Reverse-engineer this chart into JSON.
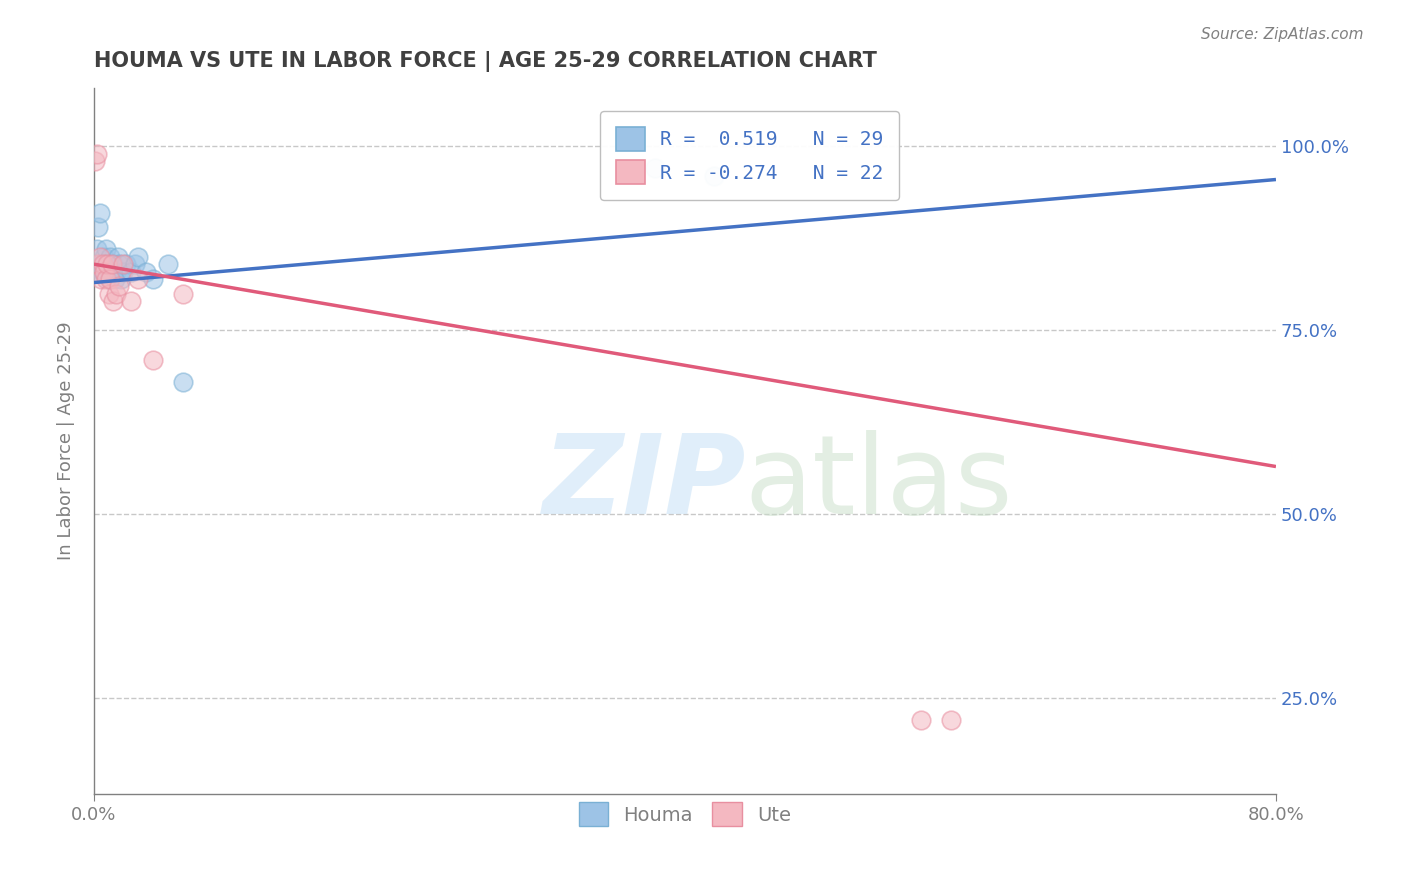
{
  "title": "HOUMA VS UTE IN LABOR FORCE | AGE 25-29 CORRELATION CHART",
  "xlabel": "",
  "ylabel": "In Labor Force | Age 25-29",
  "source_text": "Source: ZipAtlas.com",
  "xlim": [
    0.0,
    0.8
  ],
  "ylim": [
    0.12,
    1.08
  ],
  "ytick_values": [
    0.25,
    0.5,
    0.75,
    1.0
  ],
  "houma_color": "#9dc3e6",
  "ute_color": "#f4b8c1",
  "houma_edge": "#7ab0d4",
  "ute_edge": "#e88fa0",
  "trend_houma_color": "#4472c4",
  "trend_ute_color": "#e05a7a",
  "legend_R_houma": "R =  0.519",
  "legend_N_houma": "N = 29",
  "legend_R_ute": "R = -0.274",
  "legend_N_ute": "N = 22",
  "houma_x": [
    0.001,
    0.002,
    0.003,
    0.004,
    0.005,
    0.006,
    0.007,
    0.008,
    0.009,
    0.01,
    0.011,
    0.012,
    0.013,
    0.014,
    0.015,
    0.016,
    0.017,
    0.018,
    0.02,
    0.022,
    0.025,
    0.028,
    0.03,
    0.035,
    0.04,
    0.05,
    0.06,
    0.38,
    0.42
  ],
  "houma_y": [
    0.83,
    0.86,
    0.89,
    0.91,
    0.84,
    0.83,
    0.85,
    0.86,
    0.84,
    0.82,
    0.85,
    0.83,
    0.84,
    0.82,
    0.83,
    0.85,
    0.84,
    0.82,
    0.83,
    0.84,
    0.83,
    0.84,
    0.85,
    0.83,
    0.82,
    0.84,
    0.68,
    0.97,
    0.96
  ],
  "ute_x": [
    0.001,
    0.002,
    0.003,
    0.004,
    0.005,
    0.006,
    0.007,
    0.008,
    0.009,
    0.01,
    0.011,
    0.012,
    0.013,
    0.015,
    0.017,
    0.02,
    0.025,
    0.03,
    0.04,
    0.06,
    0.56,
    0.58
  ],
  "ute_y": [
    0.98,
    0.99,
    0.84,
    0.85,
    0.82,
    0.84,
    0.83,
    0.82,
    0.84,
    0.8,
    0.82,
    0.84,
    0.79,
    0.8,
    0.81,
    0.84,
    0.79,
    0.82,
    0.71,
    0.8,
    0.22,
    0.22
  ],
  "houma_trend_x0": 0.0,
  "houma_trend_y0": 0.815,
  "houma_trend_x1": 0.8,
  "houma_trend_y1": 0.955,
  "ute_trend_x0": 0.0,
  "ute_trend_y0": 0.84,
  "ute_trend_x1": 0.8,
  "ute_trend_y1": 0.565,
  "dot_size": 180,
  "dot_alpha": 0.55,
  "background_color": "#ffffff",
  "title_color": "#404040",
  "axis_color": "#808080",
  "grid_color": "#c8c8c8",
  "right_ytick_color": "#4472c4"
}
